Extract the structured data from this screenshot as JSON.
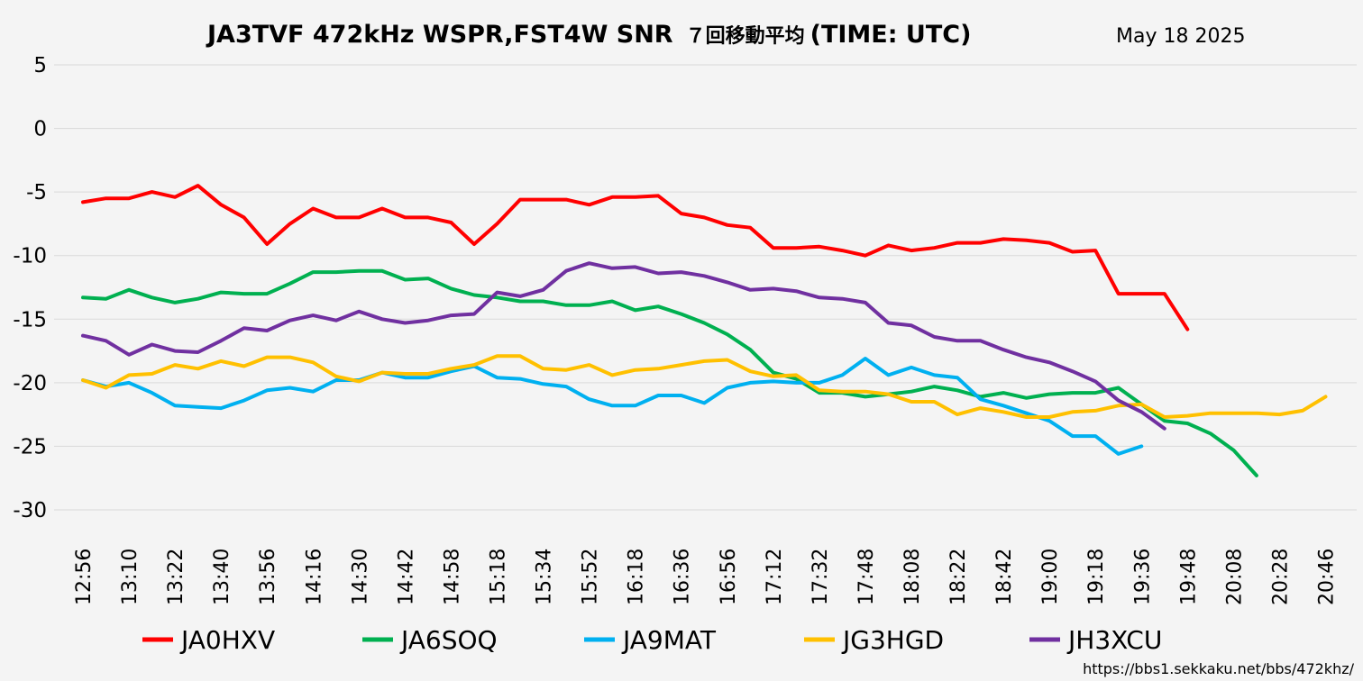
{
  "chart_data": {
    "type": "line",
    "title": "JA3TVF 472kHz WSPR,FST4W SNR",
    "title_suffix_a": "７回移動平均",
    "title_suffix_b": "(TIME: UTC)",
    "date": "May 18 2025",
    "source_url": "https://bbs1.sekkaku.net/bbs/472khz/",
    "ylim": [
      -30,
      5
    ],
    "yticks": [
      5,
      0,
      -5,
      -10,
      -15,
      -20,
      -25,
      -30
    ],
    "grid": true,
    "legend_position": "bottom",
    "x_labels": [
      "12:56",
      "13:10",
      "13:22",
      "13:40",
      "13:56",
      "14:16",
      "14:30",
      "14:42",
      "14:58",
      "15:18",
      "15:34",
      "15:52",
      "16:18",
      "16:36",
      "16:56",
      "17:12",
      "17:32",
      "17:48",
      "18:08",
      "18:22",
      "18:42",
      "19:00",
      "19:18",
      "19:36",
      "19:48",
      "20:08",
      "20:28",
      "20:46"
    ],
    "n_points": 56,
    "series": [
      {
        "name": "JA0HXV",
        "color": "#ff0000",
        "values": [
          -5.8,
          -5.5,
          -5.5,
          -5.0,
          -5.4,
          -4.5,
          -6.0,
          -7.0,
          -9.1,
          -7.5,
          -6.3,
          -7.0,
          -7.0,
          -6.3,
          -7.0,
          -7.0,
          -7.4,
          -9.1,
          -7.5,
          -5.6,
          -5.6,
          -5.6,
          -6.0,
          -5.4,
          -5.4,
          -5.3,
          -6.7,
          -7.0,
          -7.6,
          -7.8,
          -9.4,
          -9.4,
          -9.3,
          -9.6,
          -10.0,
          -9.2,
          -9.6,
          -9.4,
          -9.0,
          -9.0,
          -8.7,
          -8.8,
          -9.0,
          -9.7,
          -9.6,
          -13.0,
          -13.0,
          -13.0,
          -15.8
        ]
      },
      {
        "name": "JA6SOQ",
        "color": "#00b050",
        "values": [
          -13.3,
          -13.4,
          -12.7,
          -13.3,
          -13.7,
          -13.4,
          -12.9,
          -13.0,
          -13.0,
          -12.2,
          -11.3,
          -11.3,
          -11.2,
          -11.2,
          -11.9,
          -11.8,
          -12.6,
          -13.1,
          -13.3,
          -13.6,
          -13.6,
          -13.9,
          -13.9,
          -13.6,
          -14.3,
          -14.0,
          -14.6,
          -15.3,
          -16.2,
          -17.4,
          -19.2,
          -19.7,
          -20.8,
          -20.8,
          -21.1,
          -20.9,
          -20.7,
          -20.3,
          -20.6,
          -21.1,
          -20.8,
          -21.2,
          -20.9,
          -20.8,
          -20.8,
          -20.4,
          -21.7,
          -23.0,
          -23.2,
          -24.0,
          -25.3,
          -27.3
        ]
      },
      {
        "name": "JA9MAT",
        "color": "#00b0f0",
        "values": [
          -19.8,
          -20.3,
          -20.0,
          -20.8,
          -21.8,
          -21.9,
          -22.0,
          -21.4,
          -20.6,
          -20.4,
          -20.7,
          -19.8,
          -19.8,
          -19.2,
          -19.6,
          -19.6,
          -19.1,
          -18.7,
          -19.6,
          -19.7,
          -20.1,
          -20.3,
          -21.3,
          -21.8,
          -21.8,
          -21.0,
          -21.0,
          -21.6,
          -20.4,
          -20.0,
          -19.9,
          -20.0,
          -20.0,
          -19.4,
          -18.1,
          -19.4,
          -18.8,
          -19.4,
          -19.6,
          -21.3,
          -21.8,
          -22.4,
          -23.0,
          -24.2,
          -24.2,
          -25.6,
          -25.0
        ]
      },
      {
        "name": "JG3HGD",
        "color": "#ffc000",
        "values": [
          -19.8,
          -20.4,
          -19.4,
          -19.3,
          -18.6,
          -18.9,
          -18.3,
          -18.7,
          -18.0,
          -18.0,
          -18.4,
          -19.5,
          -19.9,
          -19.2,
          -19.3,
          -19.3,
          -18.9,
          -18.6,
          -17.9,
          -17.9,
          -18.9,
          -19.0,
          -18.6,
          -19.4,
          -19.0,
          -18.9,
          -18.6,
          -18.3,
          -18.2,
          -19.1,
          -19.5,
          -19.4,
          -20.6,
          -20.7,
          -20.7,
          -20.9,
          -21.5,
          -21.5,
          -22.5,
          -22.0,
          -22.3,
          -22.7,
          -22.7,
          -22.3,
          -22.2,
          -21.8,
          -21.7,
          -22.7,
          -22.6,
          -22.4,
          -22.4,
          -22.4,
          -22.5,
          -22.2,
          -21.1
        ]
      },
      {
        "name": "JH3XCU",
        "color": "#7030a0",
        "values": [
          -16.3,
          -16.7,
          -17.8,
          -17.0,
          -17.5,
          -17.6,
          -16.7,
          -15.7,
          -15.9,
          -15.1,
          -14.7,
          -15.1,
          -14.4,
          -15.0,
          -15.3,
          -15.1,
          -14.7,
          -14.6,
          -12.9,
          -13.2,
          -12.7,
          -11.2,
          -10.6,
          -11.0,
          -10.9,
          -11.4,
          -11.3,
          -11.6,
          -12.1,
          -12.7,
          -12.6,
          -12.8,
          -13.3,
          -13.4,
          -13.7,
          -15.3,
          -15.5,
          -16.4,
          -16.7,
          -16.7,
          -17.4,
          -18.0,
          -18.4,
          -19.1,
          -19.9,
          -21.4,
          -22.3,
          -23.6
        ]
      }
    ]
  }
}
